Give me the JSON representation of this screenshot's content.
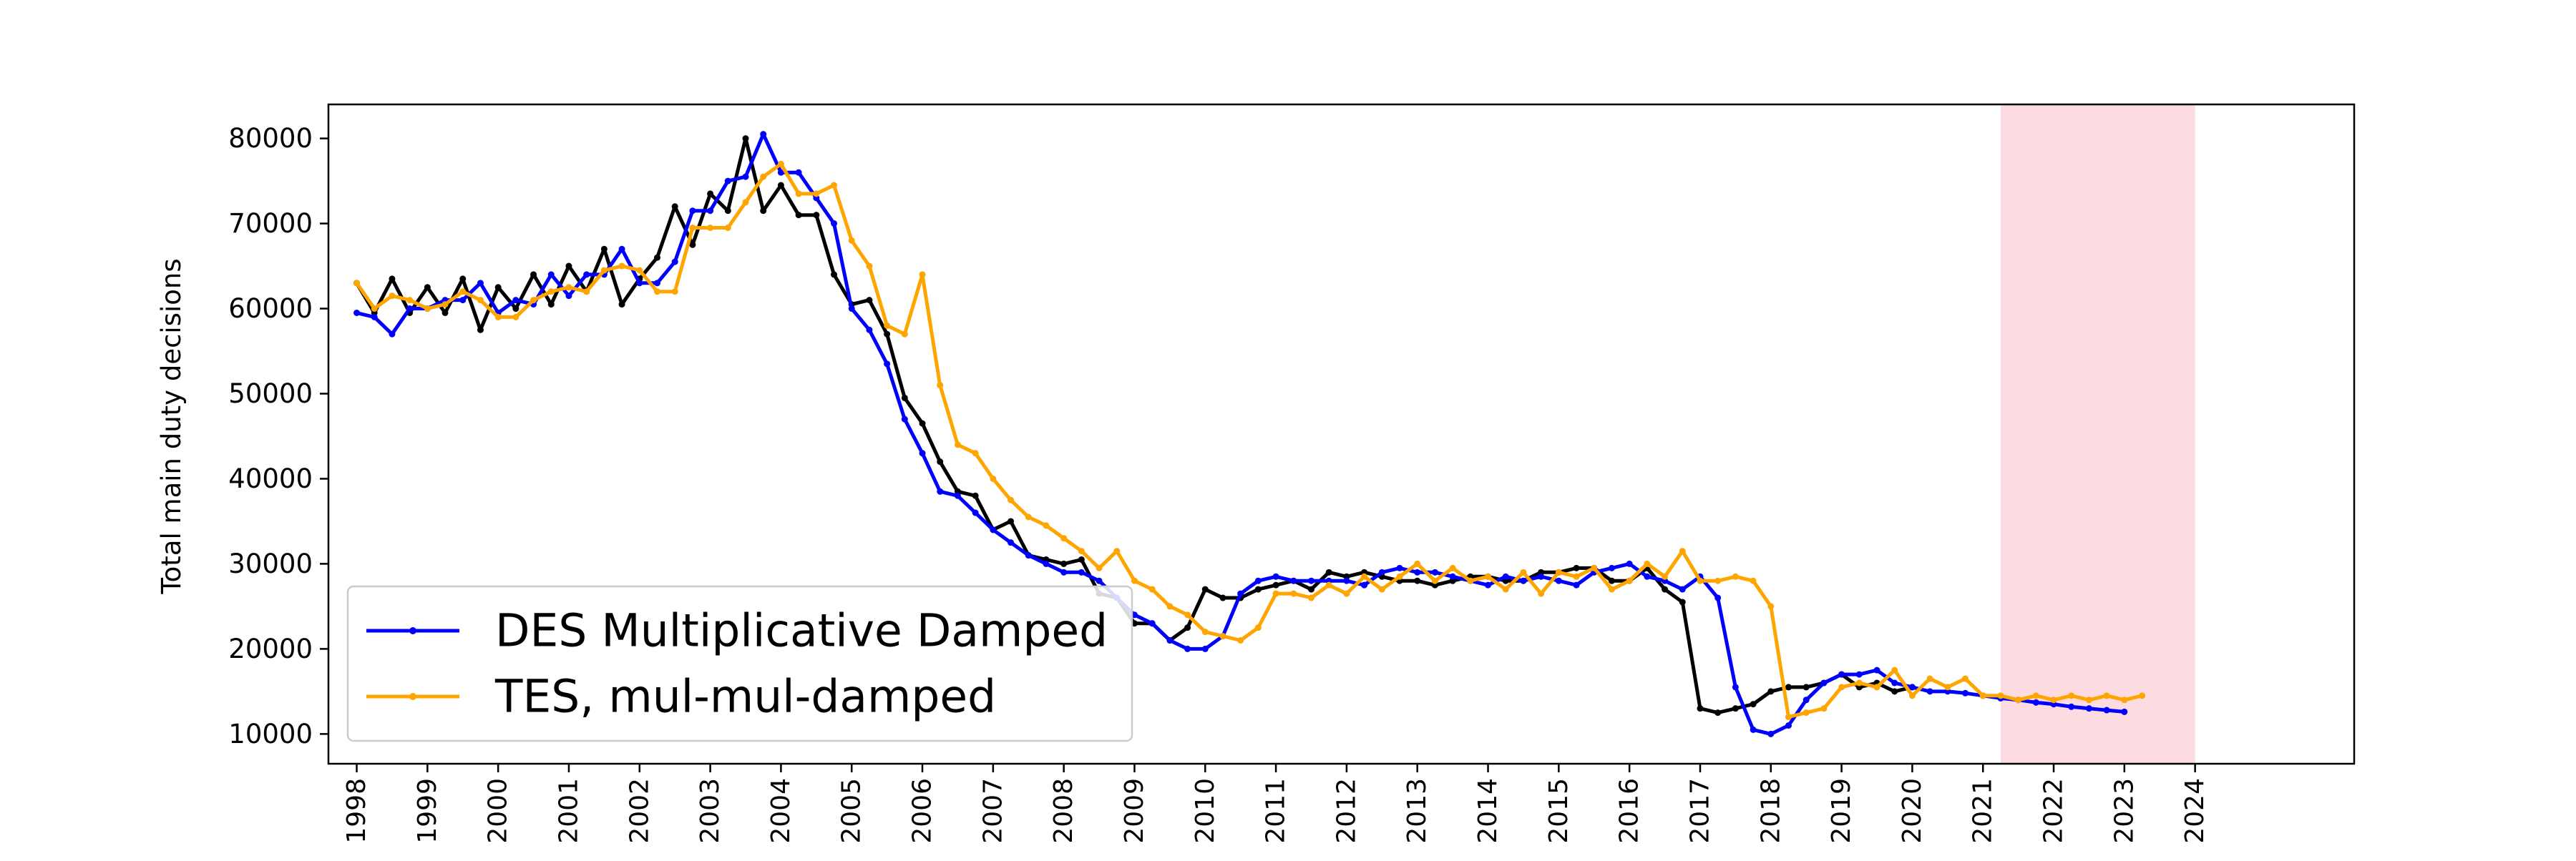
{
  "chart_data": {
    "type": "line",
    "title": "",
    "xlabel": "",
    "ylabel": "Total main duty decisions",
    "xlim": [
      1997.6,
      2026.25
    ],
    "ylim": [
      6500,
      84000
    ],
    "x_ticks": [
      "1998",
      "1999",
      "2000",
      "2001",
      "2002",
      "2003",
      "2004",
      "2005",
      "2006",
      "2007",
      "2008",
      "2009",
      "2010",
      "2011",
      "2012",
      "2013",
      "2014",
      "2015",
      "2016",
      "2017",
      "2018",
      "2019",
      "2020",
      "2021",
      "2022",
      "2023",
      "2024"
    ],
    "y_ticks": [
      "10000",
      "20000",
      "30000",
      "40000",
      "50000",
      "60000",
      "70000",
      "80000"
    ],
    "grid": false,
    "legend": {
      "placement": "lower-left",
      "entries": [
        "DES Multiplicative Damped",
        "TES, mul-mul-damped"
      ]
    },
    "highlight_band": {
      "x": [
        2021.25,
        2024.0
      ],
      "color": "#f9c0c8"
    },
    "colors": {
      "actual": "#000000",
      "des": "#0000ff",
      "tes": "#ffa500",
      "band": "#f9c0c8"
    },
    "series": [
      {
        "key": "actual",
        "x_start": 1998.0,
        "step": 0.25,
        "values": [
          63000,
          59500,
          63500,
          59500,
          62500,
          59500,
          63500,
          57500,
          62500,
          60000,
          64000,
          60500,
          65000,
          62000,
          67000,
          60500,
          63500,
          66000,
          72000,
          67500,
          73500,
          71500,
          80000,
          71500,
          74500,
          71000,
          71000,
          64000,
          60500,
          61000,
          57000,
          49500,
          46500,
          42000,
          38500,
          38000,
          34000,
          35000,
          31000,
          30500,
          30000,
          30500,
          26500,
          26000,
          23000,
          23000,
          21000,
          22500,
          27000,
          26000,
          26000,
          27000,
          27500,
          28000,
          27000,
          29000,
          28500,
          29000,
          28500,
          28000,
          28000,
          27500,
          28000,
          28500,
          28500,
          28000,
          28000,
          29000,
          29000,
          29500,
          29500,
          28000,
          28000,
          29500,
          27000,
          25500,
          13000,
          12500,
          13000,
          13500,
          15000,
          15500,
          15500,
          16000,
          17000,
          15500,
          16000,
          15000,
          15500
        ],
        "note": "historical series, unlabeled in legend"
      },
      {
        "name": "DES Multiplicative Damped",
        "key": "des",
        "x_start": 1998.0,
        "step": 0.25,
        "values": [
          59500,
          59000,
          57000,
          60000,
          60000,
          61000,
          61000,
          63000,
          59500,
          61000,
          60500,
          64000,
          61500,
          64000,
          64000,
          67000,
          63000,
          63000,
          65500,
          71500,
          71500,
          75000,
          75500,
          80500,
          76000,
          76000,
          73000,
          70000,
          60000,
          57500,
          53500,
          47000,
          43000,
          38500,
          38000,
          36000,
          34000,
          32500,
          31000,
          30000,
          29000,
          29000,
          28000,
          26000,
          24000,
          23000,
          21000,
          20000,
          20000,
          21500,
          26500,
          28000,
          28500,
          28000,
          28000,
          28000,
          28000,
          27500,
          29000,
          29500,
          29000,
          29000,
          28500,
          28000,
          27500,
          28500,
          28000,
          28500,
          28000,
          27500,
          29000,
          29500,
          30000,
          28500,
          28000,
          27000,
          28500,
          26000,
          15500,
          10500,
          10000,
          11000,
          14000,
          16000,
          17000,
          17000,
          17500,
          16000,
          15500,
          15000,
          15000,
          14800,
          14500,
          14200,
          14000,
          13700,
          13500,
          13200,
          13000,
          12800,
          12600
        ]
      },
      {
        "name": "TES, mul-mul-damped",
        "key": "tes",
        "x_start": 1998.0,
        "step": 0.25,
        "values": [
          63000,
          60000,
          61500,
          61000,
          60000,
          60500,
          62000,
          61000,
          59000,
          59000,
          61000,
          62000,
          62500,
          62000,
          64500,
          65000,
          64500,
          62000,
          62000,
          69500,
          69500,
          69500,
          72500,
          75500,
          77000,
          73500,
          73500,
          74500,
          68000,
          65000,
          58000,
          57000,
          64000,
          51000,
          44000,
          43000,
          40000,
          37500,
          35500,
          34500,
          33000,
          31500,
          29500,
          31500,
          28000,
          27000,
          25000,
          24000,
          22000,
          21500,
          21000,
          22500,
          26500,
          26500,
          26000,
          27500,
          26500,
          28500,
          27000,
          28500,
          30000,
          28000,
          29500,
          28000,
          28500,
          27000,
          29000,
          26500,
          29000,
          28500,
          29500,
          27000,
          28000,
          30000,
          28500,
          31500,
          28000,
          28000,
          28500,
          28000,
          25000,
          12000,
          12500,
          13000,
          15500,
          16000,
          15500,
          17500,
          14500,
          16500,
          15500,
          16500,
          14500,
          14500,
          14000,
          14500,
          14000,
          14500,
          14000,
          14500,
          14000,
          14500
        ]
      }
    ]
  }
}
